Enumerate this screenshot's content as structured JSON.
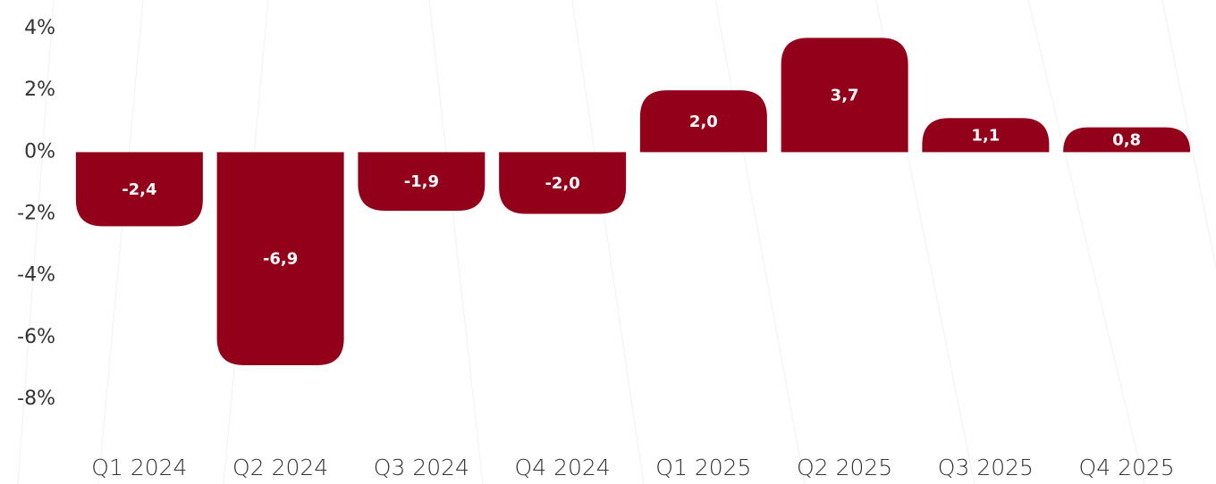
{
  "chart_data": {
    "type": "bar",
    "categories": [
      "Q1 2024",
      "Q2 2024",
      "Q3 2024",
      "Q4 2024",
      "Q1 2025",
      "Q2 2025",
      "Q3 2025",
      "Q4 2025"
    ],
    "values": [
      -2.4,
      -6.9,
      -1.9,
      -2.0,
      2.0,
      3.7,
      1.1,
      0.8
    ],
    "value_labels": [
      "-2,4",
      "-6,9",
      "-1,9",
      "-2,0",
      "2,0",
      "3,7",
      "1,1",
      "0,8"
    ],
    "color": "#930019",
    "ylim": [
      -8,
      4
    ],
    "yticks": [
      {
        "value": 4,
        "label": "4%"
      },
      {
        "value": 2,
        "label": "2%"
      },
      {
        "value": 0,
        "label": "0%"
      },
      {
        "value": -2,
        "label": "-2%"
      },
      {
        "value": -4,
        "label": "-4%"
      },
      {
        "value": -6,
        "label": "-6%"
      },
      {
        "value": -8,
        "label": "-8%"
      }
    ],
    "grid": false
  }
}
